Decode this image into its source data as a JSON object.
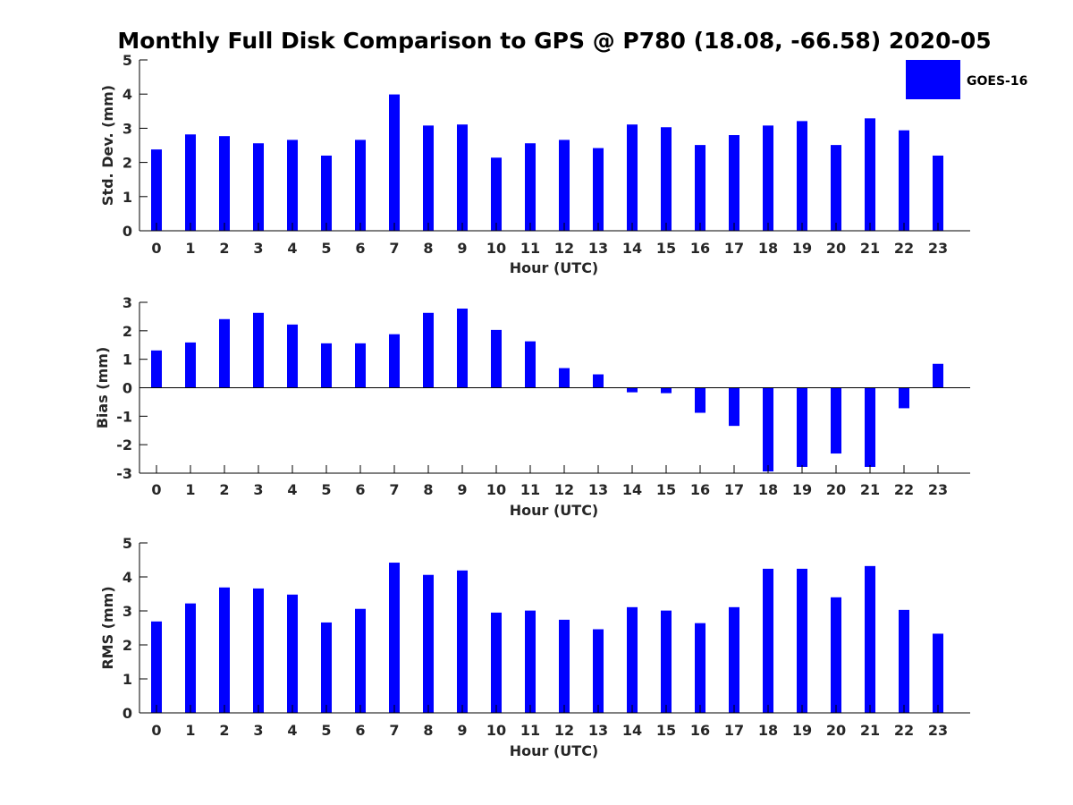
{
  "title": "Monthly Full Disk Comparison to GPS @ P780 (18.08, -66.58) 2020-05",
  "legend": {
    "label": "GOES-16",
    "color": "#0000ff"
  },
  "chart_data": [
    {
      "type": "bar",
      "xlabel": "Hour (UTC)",
      "ylabel": "Std. Dev. (mm)",
      "categories": [
        "0",
        "1",
        "2",
        "3",
        "4",
        "5",
        "6",
        "7",
        "8",
        "9",
        "10",
        "11",
        "12",
        "13",
        "14",
        "15",
        "16",
        "17",
        "18",
        "19",
        "20",
        "21",
        "22",
        "23"
      ],
      "x": [
        0,
        1,
        2,
        3,
        4,
        5,
        6,
        7,
        8,
        9,
        10,
        11,
        12,
        13,
        14,
        15,
        16,
        17,
        18,
        19,
        20,
        21,
        22,
        23
      ],
      "values": [
        2.38,
        2.82,
        2.77,
        2.56,
        2.66,
        2.2,
        2.66,
        3.99,
        3.08,
        3.11,
        2.14,
        2.56,
        2.66,
        2.42,
        3.11,
        3.03,
        2.51,
        2.8,
        3.08,
        3.21,
        2.51,
        3.29,
        2.94,
        2.2
      ],
      "ylim": [
        0,
        5
      ],
      "yticks": [
        0,
        1,
        2,
        3,
        4,
        5
      ],
      "legend": "top-right",
      "grid": false
    },
    {
      "type": "bar",
      "xlabel": "Hour (UTC)",
      "ylabel": "Bias (mm)",
      "categories": [
        "0",
        "1",
        "2",
        "3",
        "4",
        "5",
        "6",
        "7",
        "8",
        "9",
        "10",
        "11",
        "12",
        "13",
        "14",
        "15",
        "16",
        "17",
        "18",
        "19",
        "20",
        "21",
        "22",
        "23"
      ],
      "x": [
        0,
        1,
        2,
        3,
        4,
        5,
        6,
        7,
        8,
        9,
        10,
        11,
        12,
        13,
        14,
        15,
        16,
        17,
        18,
        19,
        20,
        21,
        22,
        23
      ],
      "values": [
        1.31,
        1.59,
        2.41,
        2.63,
        2.22,
        1.56,
        1.56,
        1.88,
        2.63,
        2.78,
        2.03,
        1.63,
        0.69,
        0.47,
        -0.16,
        -0.19,
        -0.88,
        -1.34,
        -2.94,
        -2.78,
        -2.31,
        -2.78,
        -0.72,
        0.84
      ],
      "ylim": [
        -3,
        3
      ],
      "yticks": [
        -3,
        -2,
        -1,
        0,
        1,
        2,
        3
      ],
      "zero_line": true,
      "grid": false
    },
    {
      "type": "bar",
      "xlabel": "Hour (UTC)",
      "ylabel": "RMS (mm)",
      "categories": [
        "0",
        "1",
        "2",
        "3",
        "4",
        "5",
        "6",
        "7",
        "8",
        "9",
        "10",
        "11",
        "12",
        "13",
        "14",
        "15",
        "16",
        "17",
        "18",
        "19",
        "20",
        "21",
        "22",
        "23"
      ],
      "x": [
        0,
        1,
        2,
        3,
        4,
        5,
        6,
        7,
        8,
        9,
        10,
        11,
        12,
        13,
        14,
        15,
        16,
        17,
        18,
        19,
        20,
        21,
        22,
        23
      ],
      "values": [
        2.69,
        3.22,
        3.69,
        3.66,
        3.48,
        2.66,
        3.06,
        4.42,
        4.06,
        4.19,
        2.95,
        3.01,
        2.74,
        2.46,
        3.11,
        3.01,
        2.64,
        3.11,
        4.24,
        4.24,
        3.4,
        4.32,
        3.03,
        2.33
      ],
      "ylim": [
        0,
        5
      ],
      "yticks": [
        0,
        1,
        2,
        3,
        4,
        5
      ],
      "grid": false
    }
  ]
}
